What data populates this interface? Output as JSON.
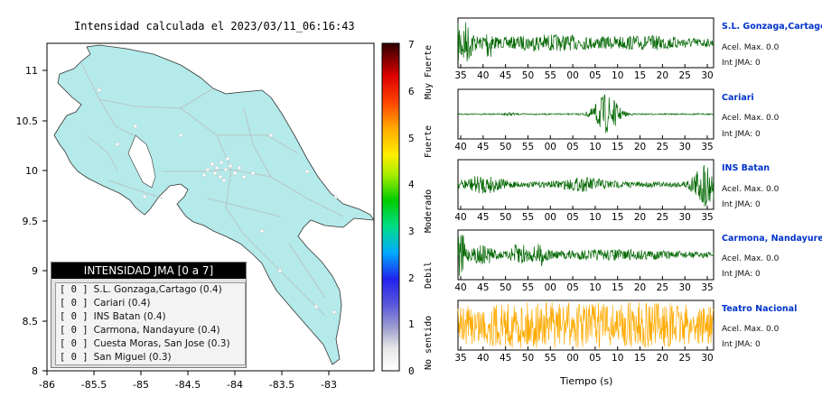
{
  "map": {
    "title": "Intensidad calculada el 2023/03/11_06:16:43",
    "x_ticks": [
      "-86",
      "-85.5",
      "-85",
      "-84.5",
      "-84",
      "-83.5",
      "-83"
    ],
    "y_ticks": [
      "11",
      "10.5",
      "10",
      "9.5",
      "9",
      "8.5",
      "8"
    ],
    "land_color": "#b4eaea",
    "road_color": "#bbbbbb"
  },
  "colorbar": {
    "ticks": [
      "0",
      "1",
      "2",
      "3",
      "4",
      "5",
      "6",
      "7"
    ],
    "labels": [
      "No sentido",
      "Debil",
      "Moderado",
      "Fuerte",
      "Muy Fuerte"
    ]
  },
  "legend": {
    "header": "INTENSIDAD JMA [0 a 7]",
    "rows": [
      {
        "value": "[ 0 ]",
        "label": "S.L. Gonzaga,Cartago (0.4)"
      },
      {
        "value": "[ 0 ]",
        "label": "Cariari (0.4)"
      },
      {
        "value": "[ 0 ]",
        "label": "INS Batan (0.4)"
      },
      {
        "value": "[ 0 ]",
        "label": "Carmona, Nandayure (0.4)"
      },
      {
        "value": "[ 0 ]",
        "label": "Cuesta Moras, San Jose (0.3)"
      },
      {
        "value": "[ 0 ]",
        "label": "San Miguel (0.3)"
      }
    ]
  },
  "stations": [
    {
      "name": "S.L. Gonzaga,Cartago",
      "accel": "Acel. Max. 0.0",
      "int": "Int JMA: 0",
      "color": "#006600",
      "ticks": [
        "35",
        "40",
        "45",
        "50",
        "55",
        "00",
        "05",
        "10",
        "15",
        "20",
        "25",
        "30"
      ]
    },
    {
      "name": "Cariari",
      "accel": "Acel. Max. 0.0",
      "int": "Int JMA: 0",
      "color": "#006600",
      "ticks": [
        "40",
        "45",
        "50",
        "55",
        "00",
        "05",
        "10",
        "15",
        "20",
        "25",
        "30",
        "35"
      ]
    },
    {
      "name": "INS Batan",
      "accel": "Acel. Max. 0.0",
      "int": "Int JMA: 0",
      "color": "#006600",
      "ticks": [
        "40",
        "45",
        "50",
        "55",
        "00",
        "05",
        "10",
        "15",
        "20",
        "25",
        "30",
        "35"
      ]
    },
    {
      "name": "Carmona, Nandayure",
      "accel": "Acel. Max. 0.0",
      "int": "Int JMA: 0",
      "color": "#006600",
      "ticks": [
        "40",
        "45",
        "50",
        "55",
        "00",
        "05",
        "10",
        "15",
        "20",
        "25",
        "30",
        "35"
      ]
    },
    {
      "name": "Teatro Nacional",
      "accel": "Acel. Max. 0.0",
      "int": "Int JMA: 0",
      "color": "#ffaa00",
      "ticks": [
        "35",
        "40",
        "45",
        "50",
        "55",
        "00",
        "05",
        "10",
        "15",
        "20",
        "25",
        "30"
      ]
    }
  ],
  "time_axis_label": "Tiempo (s)"
}
